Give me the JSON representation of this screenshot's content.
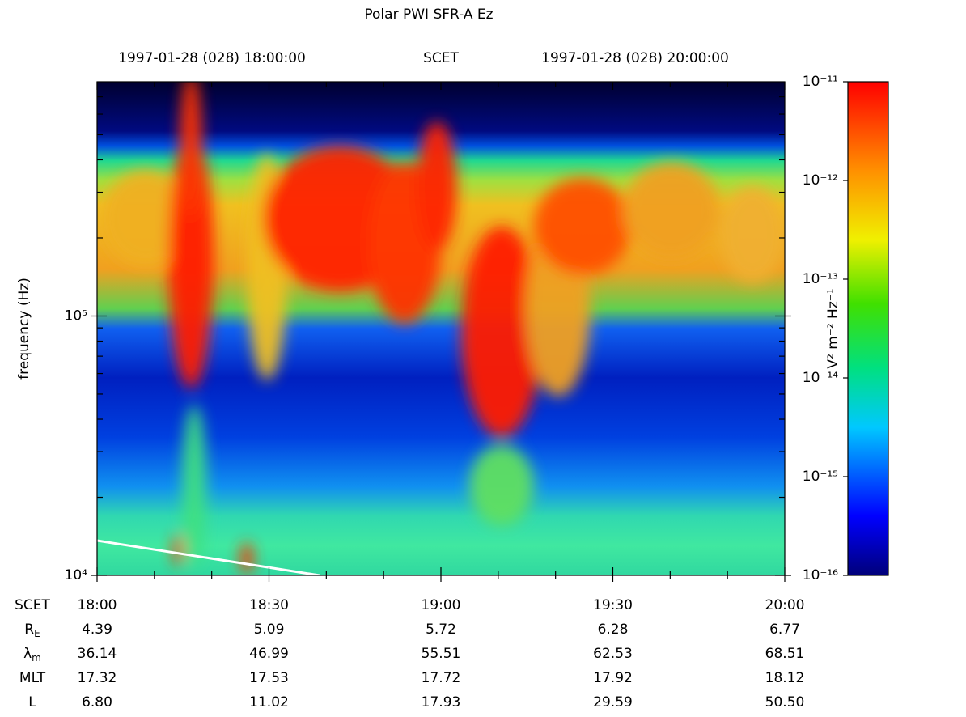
{
  "chart_data": {
    "type": "spectrogram",
    "title": "Polar PWI SFR-A Ez",
    "top_labels": [
      "1997-01-28 (028) 18:00:00",
      "SCET",
      "1997-01-28 (028) 20:00:00"
    ],
    "ylabel": "frequency (Hz)",
    "ylog": true,
    "ylim": [
      10000,
      800000
    ],
    "yticks": [
      {
        "value": 10000,
        "label": "10⁴"
      },
      {
        "value": 100000,
        "label": "10⁵"
      }
    ],
    "yminorticks": [
      20000,
      30000,
      40000,
      50000,
      60000,
      70000,
      80000,
      90000,
      200000,
      300000,
      400000,
      500000,
      600000,
      700000
    ],
    "xlim": [
      "18:00",
      "20:00"
    ],
    "xticks": [
      "18:00",
      "18:30",
      "19:00",
      "19:30",
      "20:00"
    ],
    "xminorticks": [
      "18:10",
      "18:20",
      "18:40",
      "18:50",
      "19:10",
      "19:20",
      "19:40",
      "19:50"
    ],
    "colorbar": {
      "label": "V² m⁻² Hz⁻¹",
      "log": true,
      "lim": [
        1e-16,
        1e-11
      ],
      "ticks": [
        {
          "value": 1e-16,
          "label": "10⁻¹⁶"
        },
        {
          "value": 1e-15,
          "label": "10⁻¹⁵"
        },
        {
          "value": 1e-14,
          "label": "10⁻¹⁴"
        },
        {
          "value": 1e-13,
          "label": "10⁻¹³"
        },
        {
          "value": 1e-12,
          "label": "10⁻¹²"
        },
        {
          "value": 1e-11,
          "label": "10⁻¹¹"
        }
      ]
    },
    "row_header": "SCET",
    "ephemeris": [
      {
        "name": "R",
        "sub": "E",
        "values": [
          "4.39",
          "5.09",
          "5.72",
          "6.28",
          "6.77"
        ]
      },
      {
        "name": "λ",
        "sub": "m",
        "values": [
          "36.14",
          "46.99",
          "55.51",
          "62.53",
          "68.51"
        ]
      },
      {
        "name": "MLT",
        "values": [
          "17.32",
          "17.53",
          "17.72",
          "17.92",
          "18.12"
        ]
      },
      {
        "name": "L",
        "values": [
          "6.80",
          "11.02",
          "17.93",
          "29.59",
          "50.50"
        ]
      }
    ]
  }
}
